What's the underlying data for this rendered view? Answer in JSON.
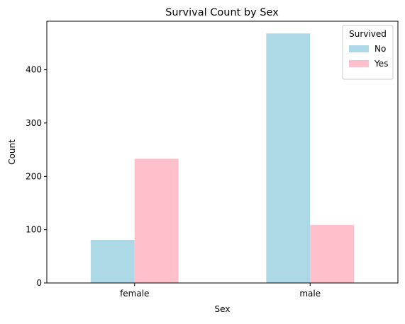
{
  "chart_data": {
    "type": "bar",
    "title": "Survival Count by Sex",
    "xlabel": "Sex",
    "ylabel": "Count",
    "categories": [
      "female",
      "male"
    ],
    "series": [
      {
        "name": "No",
        "values": [
          81,
          468
        ],
        "color": "#add8e6"
      },
      {
        "name": "Yes",
        "values": [
          233,
          109
        ],
        "color": "#ffc0cb"
      }
    ],
    "ylim": [
      0,
      491
    ],
    "yticks": [
      0,
      100,
      200,
      300,
      400
    ],
    "grid": false,
    "legend": {
      "title": "Survived",
      "position": "top-right"
    }
  }
}
